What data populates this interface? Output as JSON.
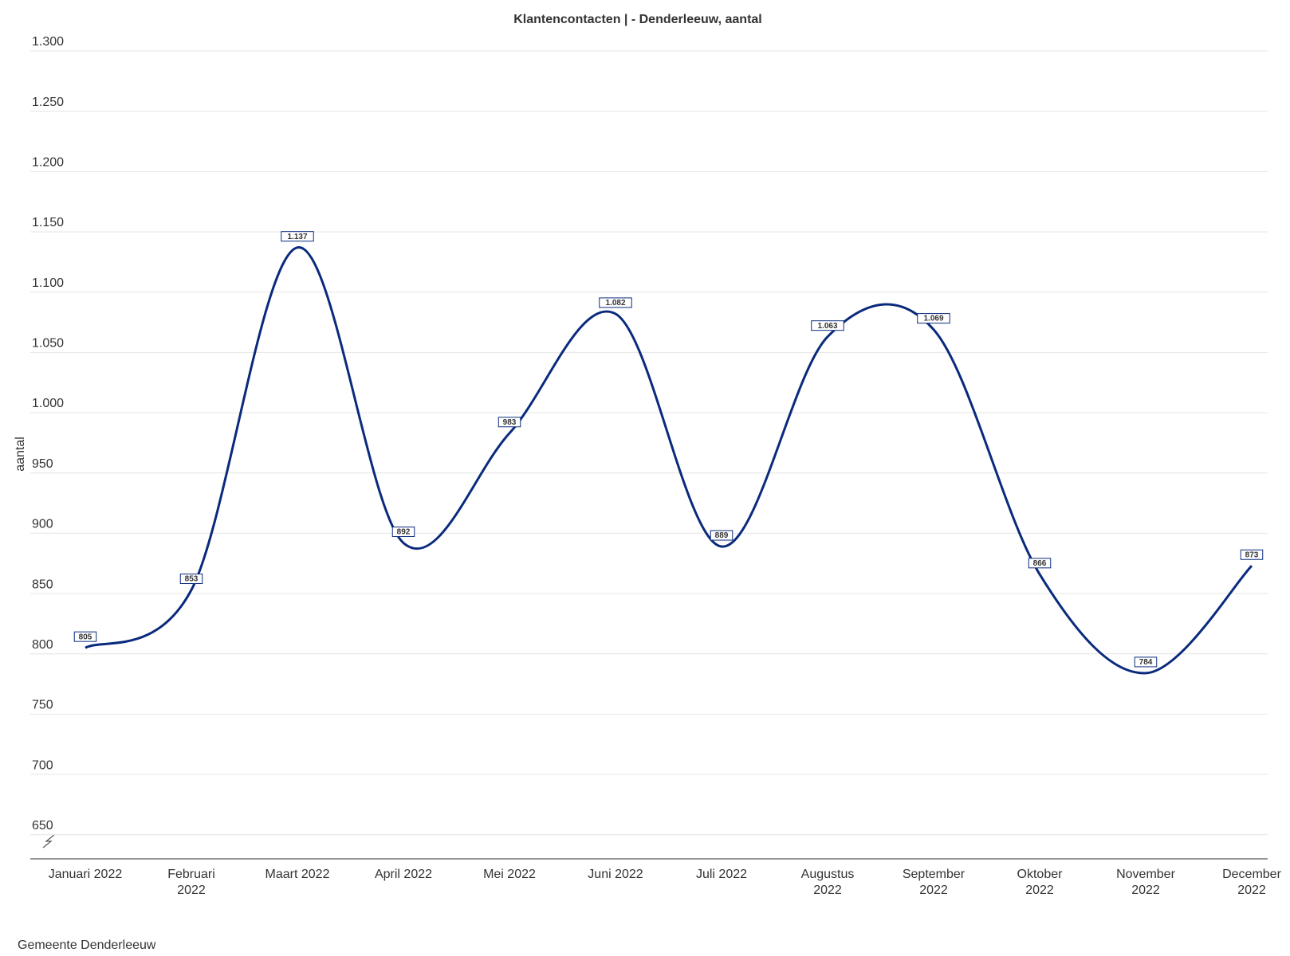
{
  "chart_data": {
    "type": "line",
    "title": "Klantencontacten | - Denderleeuw, aantal",
    "y_label": "aantal",
    "source": "Gemeente Denderleeuw",
    "categories": [
      "Januari 2022",
      "Februari 2022",
      "Maart 2022",
      "April 2022",
      "Mei 2022",
      "Juni 2022",
      "Juli 2022",
      "Augustus 2022",
      "September 2022",
      "Oktober 2022",
      "November 2022",
      "December 2022"
    ],
    "series": [
      {
        "name": "Denderleeuw",
        "color": "#0a2a7d",
        "values": [
          805,
          853,
          1137,
          892,
          983,
          1082,
          889,
          1063,
          1069,
          866,
          784,
          873
        ],
        "value_labels": [
          "805",
          "853",
          "1.137",
          "892",
          "983",
          "1.082",
          "889",
          "1.063",
          "1.069",
          "866",
          "784",
          "873"
        ]
      }
    ],
    "ylim": [
      630,
      1300
    ],
    "yticks": [
      650,
      700,
      750,
      800,
      850,
      900,
      950,
      {
        "value": 1000,
        "label": "1.000"
      },
      {
        "value": 1050,
        "label": "1.050"
      },
      {
        "value": 1100,
        "label": "1.100"
      },
      {
        "value": 1150,
        "label": "1.150"
      },
      {
        "value": 1200,
        "label": "1.200"
      },
      {
        "value": 1250,
        "label": "1.250"
      },
      {
        "value": 1300,
        "label": "1.300"
      }
    ],
    "grid": true
  }
}
